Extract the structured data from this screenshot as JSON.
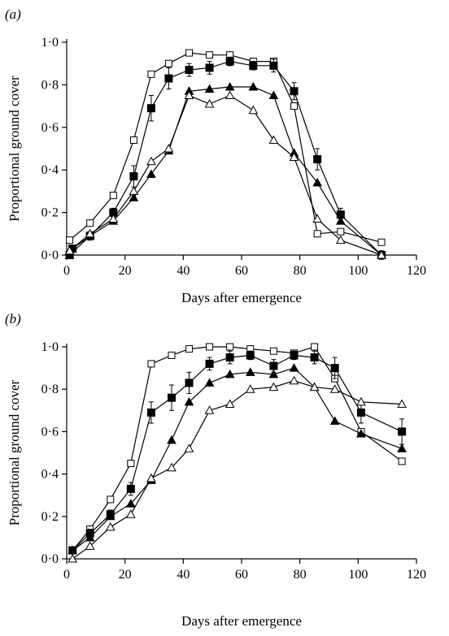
{
  "chart_data": [
    {
      "panel_label": "(a)",
      "type": "line",
      "title": "",
      "xlabel": "Days after emergence",
      "ylabel": "Proportional ground cover",
      "xlim": [
        0,
        120
      ],
      "ylim": [
        0,
        1
      ],
      "x_ticks": [
        "0",
        "20",
        "40",
        "60",
        "80",
        "100",
        "120"
      ],
      "y_ticks": [
        "0·0",
        "0·2",
        "0·4",
        "0·6",
        "0·8",
        "1·0"
      ],
      "grid": false,
      "legend": "none",
      "series": [
        {
          "marker": "open-square",
          "points": [
            [
              1,
              0.07
            ],
            [
              8,
              0.15
            ],
            [
              16,
              0.28
            ],
            [
              23,
              0.54
            ],
            [
              29,
              0.85
            ],
            [
              35,
              0.9
            ],
            [
              42,
              0.95
            ],
            [
              49,
              0.94
            ],
            [
              56,
              0.94
            ],
            [
              64,
              0.91
            ],
            [
              71,
              0.91
            ],
            [
              78,
              0.7
            ],
            [
              86,
              0.1
            ],
            [
              94,
              0.11
            ],
            [
              108,
              0.06
            ]
          ]
        },
        {
          "marker": "filled-square",
          "points": [
            [
              1,
              0.0
            ],
            [
              2,
              0.03
            ],
            [
              8,
              0.09
            ],
            [
              16,
              0.2
            ],
            [
              23,
              0.37
            ],
            [
              29,
              0.69
            ],
            [
              35,
              0.83
            ],
            [
              42,
              0.87
            ],
            [
              49,
              0.88
            ],
            [
              56,
              0.91
            ],
            [
              64,
              0.89
            ],
            [
              71,
              0.89
            ],
            [
              78,
              0.77
            ],
            [
              86,
              0.45
            ],
            [
              94,
              0.19
            ],
            [
              108,
              0.0
            ]
          ],
          "error": [
            0,
            0,
            0.02,
            0.02,
            0.05,
            0.06,
            0.05,
            0.03,
            0.03,
            0.02,
            0.02,
            0.03,
            0.04,
            0.05,
            0.03,
            0.02
          ]
        },
        {
          "marker": "filled-triangle",
          "points": [
            [
              1,
              0.0
            ],
            [
              8,
              0.09
            ],
            [
              16,
              0.16
            ],
            [
              23,
              0.27
            ],
            [
              29,
              0.38
            ],
            [
              35,
              0.49
            ],
            [
              42,
              0.77
            ],
            [
              49,
              0.78
            ],
            [
              56,
              0.79
            ],
            [
              64,
              0.79
            ],
            [
              71,
              0.75
            ],
            [
              78,
              0.48
            ],
            [
              86,
              0.34
            ],
            [
              94,
              0.16
            ],
            [
              108,
              0.0
            ]
          ]
        },
        {
          "marker": "open-triangle",
          "points": [
            [
              1,
              0.02
            ],
            [
              8,
              0.1
            ],
            [
              16,
              0.17
            ],
            [
              23,
              0.3
            ],
            [
              29,
              0.44
            ],
            [
              35,
              0.5
            ],
            [
              42,
              0.75
            ],
            [
              49,
              0.71
            ],
            [
              56,
              0.75
            ],
            [
              64,
              0.68
            ],
            [
              71,
              0.54
            ],
            [
              78,
              0.46
            ],
            [
              86,
              0.17
            ],
            [
              94,
              0.07
            ],
            [
              108,
              0.0
            ]
          ]
        }
      ]
    },
    {
      "panel_label": "(b)",
      "type": "line",
      "title": "",
      "xlabel": "Days after emergence",
      "ylabel": "Proportional ground cover",
      "xlim": [
        0,
        120
      ],
      "ylim": [
        0,
        1
      ],
      "x_ticks": [
        "0",
        "20",
        "40",
        "60",
        "80",
        "100",
        "120"
      ],
      "y_ticks": [
        "0·0",
        "0·2",
        "0·4",
        "0·6",
        "0·8",
        "1·0"
      ],
      "grid": false,
      "legend": "none",
      "series": [
        {
          "marker": "open-square",
          "points": [
            [
              2,
              0.04
            ],
            [
              8,
              0.14
            ],
            [
              15,
              0.28
            ],
            [
              22,
              0.45
            ],
            [
              29,
              0.92
            ],
            [
              36,
              0.96
            ],
            [
              42,
              0.99
            ],
            [
              49,
              1.0
            ],
            [
              56,
              1.0
            ],
            [
              63,
              0.99
            ],
            [
              71,
              0.98
            ],
            [
              78,
              0.97
            ],
            [
              85,
              1.0
            ],
            [
              92,
              0.85
            ],
            [
              101,
              0.6
            ],
            [
              115,
              0.46
            ]
          ]
        },
        {
          "marker": "filled-square",
          "points": [
            [
              2,
              0.04
            ],
            [
              8,
              0.12
            ],
            [
              15,
              0.21
            ],
            [
              22,
              0.33
            ],
            [
              29,
              0.69
            ],
            [
              36,
              0.76
            ],
            [
              42,
              0.83
            ],
            [
              49,
              0.92
            ],
            [
              56,
              0.95
            ],
            [
              63,
              0.96
            ],
            [
              71,
              0.91
            ],
            [
              78,
              0.96
            ],
            [
              85,
              0.95
            ],
            [
              92,
              0.9
            ],
            [
              101,
              0.69
            ],
            [
              115,
              0.6
            ]
          ],
          "error": [
            0,
            0.02,
            0.02,
            0.03,
            0.05,
            0.06,
            0.05,
            0.03,
            0.03,
            0.02,
            0.03,
            0.02,
            0.03,
            0.05,
            0.05,
            0.06
          ]
        },
        {
          "marker": "filled-triangle",
          "points": [
            [
              2,
              0.04
            ],
            [
              8,
              0.1
            ],
            [
              15,
              0.2
            ],
            [
              22,
              0.26
            ],
            [
              29,
              0.37
            ],
            [
              36,
              0.56
            ],
            [
              42,
              0.74
            ],
            [
              49,
              0.83
            ],
            [
              56,
              0.87
            ],
            [
              63,
              0.88
            ],
            [
              71,
              0.87
            ],
            [
              78,
              0.9
            ],
            [
              85,
              0.81
            ],
            [
              92,
              0.65
            ],
            [
              101,
              0.59
            ],
            [
              115,
              0.52
            ]
          ]
        },
        {
          "marker": "open-triangle",
          "points": [
            [
              2,
              0.0
            ],
            [
              8,
              0.06
            ],
            [
              15,
              0.15
            ],
            [
              22,
              0.21
            ],
            [
              29,
              0.38
            ],
            [
              36,
              0.43
            ],
            [
              42,
              0.52
            ],
            [
              49,
              0.7
            ],
            [
              56,
              0.73
            ],
            [
              63,
              0.8
            ],
            [
              71,
              0.81
            ],
            [
              78,
              0.84
            ],
            [
              85,
              0.81
            ],
            [
              92,
              0.8
            ],
            [
              101,
              0.74
            ],
            [
              115,
              0.73
            ]
          ]
        }
      ]
    }
  ]
}
